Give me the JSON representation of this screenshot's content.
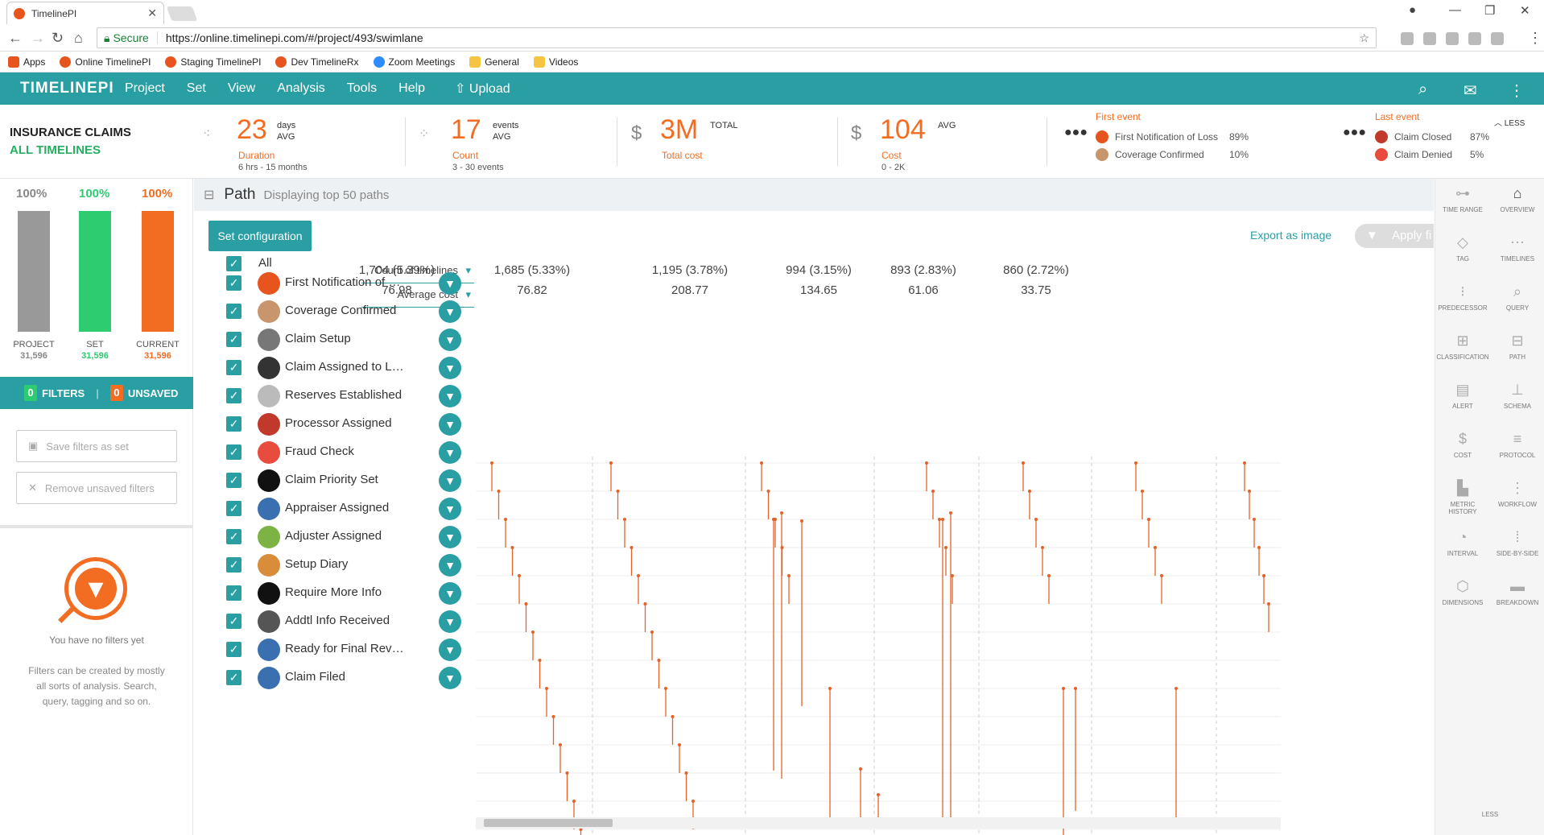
{
  "browser": {
    "tab_title": "TimelinePI",
    "secure_label": "Secure",
    "url": "https://online.timelinepi.com/#/project/493/swimlane",
    "bookmarks": [
      "Apps",
      "Online TimelinePI",
      "Staging TimelinePI",
      "Dev TimelineRx",
      "Zoom Meetings",
      "General",
      "Videos"
    ]
  },
  "app": {
    "logo": "TIMELINEPI",
    "menu": [
      "Project",
      "Set",
      "View",
      "Analysis",
      "Tools",
      "Help"
    ],
    "upload_label": "Upload"
  },
  "header": {
    "project_title": "INSURANCE CLAIMS",
    "project_subtitle": "ALL TIMELINES",
    "duration": {
      "value": "23",
      "unit1": "days",
      "unit2": "AVG",
      "label": "Duration",
      "range": "6 hrs - 15 months"
    },
    "count": {
      "value": "17",
      "unit1": "events",
      "unit2": "AVG",
      "label": "Count",
      "range": "3 - 30 events"
    },
    "total_cost": {
      "value": "3M",
      "unit1": "TOTAL",
      "label": "Total cost"
    },
    "avg_cost": {
      "value": "104",
      "unit1": "AVG",
      "label": "Cost",
      "range": "0 - 2K"
    },
    "first_event": {
      "title": "First event",
      "rows": [
        {
          "label": "First Notification of Loss",
          "pct": "89%"
        },
        {
          "label": "Coverage Confirmed",
          "pct": "10%"
        }
      ]
    },
    "last_event": {
      "title": "Last event",
      "rows": [
        {
          "label": "Claim Closed",
          "pct": "87%"
        },
        {
          "label": "Claim Denied",
          "pct": "5%"
        }
      ]
    },
    "less_label": "LESS"
  },
  "left": {
    "bars": [
      {
        "pct": "100%",
        "name": "PROJECT",
        "count": "31,596",
        "color": "#999999",
        "fill": 1.0
      },
      {
        "pct": "100%",
        "name": "SET",
        "count": "31,596",
        "color": "#2ecc71",
        "fill": 1.0
      },
      {
        "pct": "100%",
        "name": "CURRENT",
        "count": "31,596",
        "color": "#f26c22",
        "fill": 1.0
      }
    ],
    "filters_count": "0",
    "filters_label": "FILTERS",
    "unsaved_count": "0",
    "unsaved_label": "UNSAVED",
    "save_btn": "Save filters as set",
    "remove_btn": "Remove unsaved filters",
    "no_filters_title": "You have no filters yet",
    "no_filters_desc": "Filters can be created by mostly all sorts of analysis. Search, query, tagging and so on."
  },
  "path": {
    "title": "Path",
    "subtitle": "Displaying top 50 paths",
    "set_config": "Set configuration",
    "export": "Export as image",
    "apply": "Apply fi",
    "selector_count": "Count of timelines",
    "selector_cost": "Average cost",
    "columns": [
      {
        "count": "1,704 (5.39%)",
        "cost": "76.98"
      },
      {
        "count": "1,685 (5.33%)",
        "cost": "76.82"
      },
      {
        "count": "1,195 (3.78%)",
        "cost": "208.77"
      },
      {
        "count": "994 (3.15%)",
        "cost": "134.65"
      },
      {
        "count": "893 (2.83%)",
        "cost": "61.06"
      },
      {
        "count": "860 (2.72%)",
        "cost": "33.75"
      }
    ],
    "all_label": "All",
    "events": [
      {
        "label": "First Notification of Loss",
        "icon": "fnol-icon",
        "color": "#e8541e"
      },
      {
        "label": "Coverage Confirmed",
        "icon": "thumbs-up-icon",
        "color": "#c8956c"
      },
      {
        "label": "Claim Setup",
        "icon": "clipboard-icon",
        "color": "#777777"
      },
      {
        "label": "Claim Assigned to Line o...",
        "icon": "org-chart-icon",
        "color": "#333333"
      },
      {
        "label": "Reserves Established",
        "icon": "calendar-28-icon",
        "color": "#bbbbbb"
      },
      {
        "label": "Processor Assigned",
        "icon": "person-icon",
        "color": "#c0392b"
      },
      {
        "label": "Fraud Check",
        "icon": "no-fraud-icon",
        "color": "#e74c3c"
      },
      {
        "label": "Claim Priority Set",
        "icon": "priority-icon",
        "color": "#111111"
      },
      {
        "label": "Appraiser Assigned",
        "icon": "person-blue-icon",
        "color": "#3a6fb0"
      },
      {
        "label": "Adjuster Assigned",
        "icon": "person-green-icon",
        "color": "#7cb342"
      },
      {
        "label": "Setup Diary",
        "icon": "diary-icon",
        "color": "#d98c3a"
      },
      {
        "label": "Require More Info",
        "icon": "info-icon",
        "color": "#111111"
      },
      {
        "label": "Addtl Info Received",
        "icon": "check-doc-icon",
        "color": "#555555"
      },
      {
        "label": "Ready for Final Review",
        "icon": "review-icon",
        "color": "#3a6fb0"
      },
      {
        "label": "Claim Filed",
        "icon": "file-icon",
        "color": "#3a6fb0"
      }
    ]
  },
  "right": {
    "items": [
      {
        "label": "TIME RANGE",
        "icon": "time-range-icon",
        "glyph": "⊶"
      },
      {
        "label": "OVERVIEW",
        "icon": "home-icon",
        "glyph": "⌂"
      },
      {
        "label": "TAG",
        "icon": "tag-icon",
        "glyph": "◇"
      },
      {
        "label": "TIMELINES",
        "icon": "timelines-icon",
        "glyph": "⋯"
      },
      {
        "label": "PREDECESSOR",
        "icon": "predecessor-icon",
        "glyph": "⁝"
      },
      {
        "label": "QUERY",
        "icon": "query-icon",
        "glyph": "⌕"
      },
      {
        "label": "CLASSIFICATION",
        "icon": "classification-icon",
        "glyph": "⊞"
      },
      {
        "label": "PATH",
        "icon": "path-icon",
        "glyph": "⊟"
      },
      {
        "label": "ALERT",
        "icon": "alert-icon",
        "glyph": "▤"
      },
      {
        "label": "SCHEMA",
        "icon": "schema-icon",
        "glyph": "⊥"
      },
      {
        "label": "COST",
        "icon": "cost-icon",
        "glyph": "$"
      },
      {
        "label": "PROTOCOL",
        "icon": "protocol-icon",
        "glyph": "≡"
      },
      {
        "label": "METRIC HISTORY",
        "icon": "metric-history-icon",
        "glyph": "▙"
      },
      {
        "label": "WORKFLOW",
        "icon": "workflow-icon",
        "glyph": "⋮"
      },
      {
        "label": "INTERVAL",
        "icon": "interval-icon",
        "glyph": "◔"
      },
      {
        "label": "SIDE-BY-SIDE",
        "icon": "side-by-side-icon",
        "glyph": "⁞"
      },
      {
        "label": "DIMENSIONS",
        "icon": "dimensions-icon",
        "glyph": "⬡"
      },
      {
        "label": "BREAKDOWN",
        "icon": "breakdown-icon",
        "glyph": "▬"
      }
    ],
    "less_label": "LESS"
  }
}
